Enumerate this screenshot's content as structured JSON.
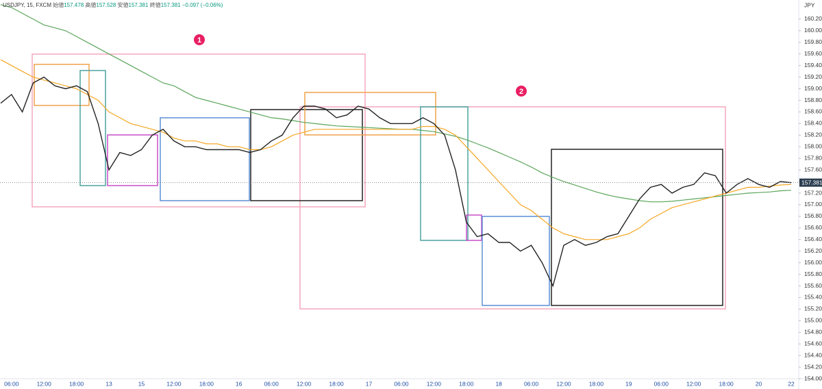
{
  "chart_data": {
    "type": "line",
    "title": "USDJPY, 15, FXCM",
    "quote": [
      {
        "label": "始値",
        "value": 157.478
      },
      {
        "label": "高値",
        "value": 157.528
      },
      {
        "label": "安値",
        "value": 157.381
      },
      {
        "label": "終値",
        "value": 157.381
      }
    ],
    "change": "−0.097 (−0.06%)",
    "currency": "JPY",
    "annotations": [
      "1",
      "2"
    ],
    "categories": [
      null,
      "06:00",
      null,
      null,
      "12:00",
      null,
      null,
      "18:00",
      null,
      null,
      "13",
      null,
      null,
      "15",
      null,
      null,
      "12:00",
      null,
      null,
      "18:00",
      null,
      null,
      "16",
      null,
      null,
      "06:00",
      null,
      null,
      "12:00",
      null,
      null,
      "18:00",
      null,
      null,
      "17",
      null,
      null,
      "06:00",
      null,
      null,
      "12:00",
      null,
      null,
      "18:00",
      null,
      null,
      "18",
      null,
      null,
      "06:00",
      null,
      null,
      "12:00",
      null,
      null,
      "18:00",
      null,
      null,
      "19",
      null,
      null,
      "06:00",
      null,
      null,
      "12:00",
      null,
      null,
      "18:00",
      null,
      null,
      "20",
      null,
      null,
      "22"
    ],
    "series": [
      {
        "color": "#222222",
        "values": [
          158.75,
          158.9,
          158.6,
          159.1,
          159.2,
          159.05,
          159.0,
          159.05,
          158.95,
          158.4,
          157.6,
          157.9,
          157.85,
          157.95,
          158.2,
          158.3,
          158.1,
          158.0,
          158.0,
          157.95,
          157.95,
          157.95,
          157.95,
          157.9,
          157.95,
          158.1,
          158.2,
          158.5,
          158.7,
          158.7,
          158.65,
          158.5,
          158.55,
          158.7,
          158.65,
          158.5,
          158.4,
          158.4,
          158.4,
          158.5,
          158.4,
          158.2,
          157.6,
          156.7,
          156.45,
          156.5,
          156.35,
          156.35,
          156.2,
          156.3,
          156.0,
          155.6,
          156.3,
          156.4,
          156.3,
          156.35,
          156.45,
          156.5,
          156.8,
          157.1,
          157.3,
          157.35,
          157.2,
          157.3,
          157.35,
          157.55,
          157.5,
          157.2,
          157.35,
          157.45,
          157.35,
          157.3,
          157.4,
          157.381
        ]
      },
      {
        "color": "#f5a623",
        "values": [
          159.5,
          159.4,
          159.3,
          159.2,
          159.15,
          159.1,
          159.05,
          159.0,
          158.9,
          158.8,
          158.6,
          158.5,
          158.4,
          158.35,
          158.3,
          158.25,
          158.15,
          158.1,
          158.1,
          158.05,
          158.05,
          158.0,
          158.0,
          157.95,
          157.95,
          158.0,
          158.1,
          158.2,
          158.25,
          158.3,
          158.3,
          158.3,
          158.3,
          158.3,
          158.3,
          158.3,
          158.3,
          158.3,
          158.3,
          158.35,
          158.35,
          158.3,
          158.2,
          158.0,
          157.8,
          157.6,
          157.4,
          157.2,
          157.0,
          156.9,
          156.75,
          156.6,
          156.5,
          156.45,
          156.4,
          156.4,
          156.4,
          156.45,
          156.5,
          156.6,
          156.75,
          156.85,
          156.95,
          157.0,
          157.05,
          157.1,
          157.15,
          157.2,
          157.25,
          157.3,
          157.3,
          157.32,
          157.34,
          157.35
        ]
      },
      {
        "color": "#5aa55a",
        "values": [
          160.45,
          160.4,
          160.3,
          160.2,
          160.1,
          160.05,
          160.0,
          159.9,
          159.8,
          159.7,
          159.6,
          159.5,
          159.4,
          159.3,
          159.2,
          159.1,
          159.05,
          158.95,
          158.85,
          158.8,
          158.75,
          158.7,
          158.65,
          158.6,
          158.55,
          158.5,
          158.48,
          158.45,
          158.42,
          158.4,
          158.38,
          158.36,
          158.35,
          158.34,
          158.33,
          158.32,
          158.31,
          158.3,
          158.3,
          158.28,
          158.26,
          158.22,
          158.18,
          158.12,
          158.05,
          157.98,
          157.9,
          157.82,
          157.74,
          157.65,
          157.55,
          157.47,
          157.4,
          157.34,
          157.28,
          157.22,
          157.17,
          157.13,
          157.1,
          157.07,
          157.05,
          157.05,
          157.06,
          157.08,
          157.1,
          157.12,
          157.14,
          157.16,
          157.18,
          157.2,
          157.21,
          157.22,
          157.24,
          157.25
        ]
      }
    ],
    "ylim": [
      154.0,
      160.53
    ],
    "yticks": [
      {
        "value": 160.2,
        "label": "160.200"
      },
      {
        "value": 160.0,
        "label": "160.000"
      },
      {
        "value": 159.8,
        "label": "159.800"
      },
      {
        "value": 159.6,
        "label": "159.600"
      },
      {
        "value": 159.4,
        "label": "159.400"
      },
      {
        "value": 159.2,
        "label": "159.200"
      },
      {
        "value": 159.0,
        "label": "159.000"
      },
      {
        "value": 158.8,
        "label": "158.800"
      },
      {
        "value": 158.6,
        "label": "158.600"
      },
      {
        "value": 158.4,
        "label": "158.400"
      },
      {
        "value": 158.2,
        "label": "158.200"
      },
      {
        "value": 158.0,
        "label": "158.000"
      },
      {
        "value": 157.8,
        "label": "157.800"
      },
      {
        "value": 157.6,
        "label": "157.600"
      },
      {
        "value": 157.4,
        "label": "157.400"
      },
      {
        "value": 157.2,
        "label": "157.200"
      },
      {
        "value": 157.0,
        "label": "157.000"
      },
      {
        "value": 156.8,
        "label": "156.800"
      },
      {
        "value": 156.6,
        "label": "156.600"
      },
      {
        "value": 156.4,
        "label": "156.400"
      },
      {
        "value": 156.2,
        "label": "156.200"
      },
      {
        "value": 156.0,
        "label": "156.000"
      },
      {
        "value": 155.8,
        "label": "155.800"
      },
      {
        "value": 155.6,
        "label": "155.600"
      },
      {
        "value": 155.4,
        "label": "155.400"
      },
      {
        "value": 155.2,
        "label": "155.200"
      },
      {
        "value": 155.0,
        "label": "155.000"
      },
      {
        "value": 154.8,
        "label": "154.800"
      },
      {
        "value": 154.6,
        "label": "154.600"
      },
      {
        "value": 154.4,
        "label": "154.400"
      },
      {
        "value": 154.2,
        "label": "154.200"
      },
      {
        "value": 154.0,
        "label": "154.000"
      }
    ],
    "grid": false
  }
}
